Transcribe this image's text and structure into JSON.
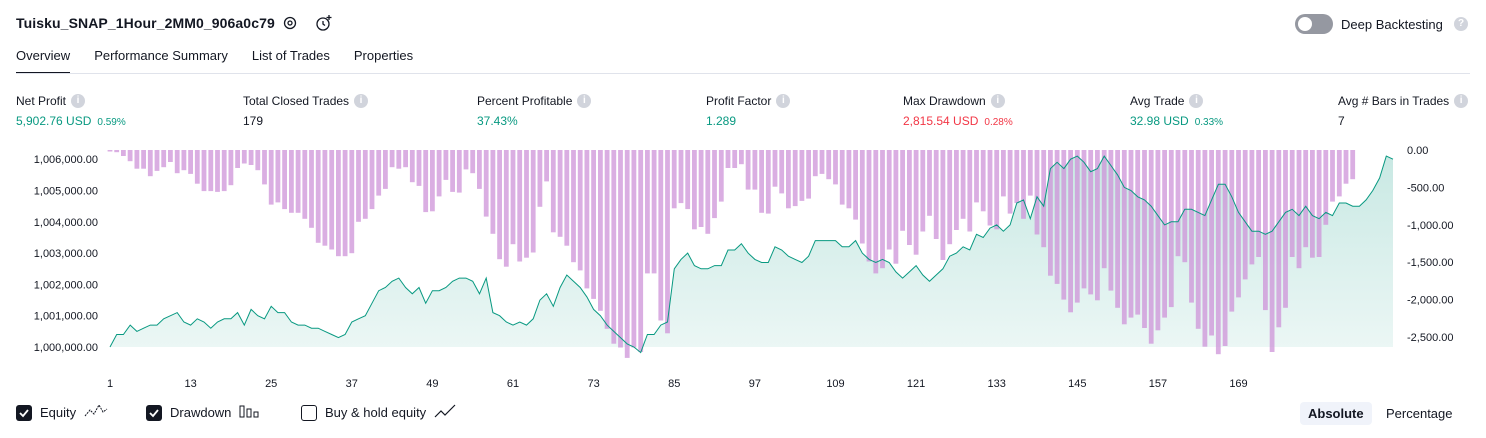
{
  "header": {
    "title": "Tuisku_SNAP_1Hour_2MM0_906a0c79",
    "deep_backtesting_label": "Deep Backtesting",
    "deep_backtesting_enabled": false
  },
  "tabs": [
    {
      "label": "Overview",
      "active": true
    },
    {
      "label": "Performance Summary",
      "active": false
    },
    {
      "label": "List of Trades",
      "active": false
    },
    {
      "label": "Properties",
      "active": false
    }
  ],
  "metrics": [
    {
      "label": "Net Profit",
      "value": "5,902.76 USD",
      "pct": "0.59%",
      "color": "#089981"
    },
    {
      "label": "Total Closed Trades",
      "value": "179",
      "pct": "",
      "color": "#131722"
    },
    {
      "label": "Percent Profitable",
      "value": "37.43%",
      "pct": "",
      "color": "#089981"
    },
    {
      "label": "Profit Factor",
      "value": "1.289",
      "pct": "",
      "color": "#089981"
    },
    {
      "label": "Max Drawdown",
      "value": "2,815.54 USD",
      "pct": "0.28%",
      "color": "#f23645"
    },
    {
      "label": "Avg Trade",
      "value": "32.98 USD",
      "pct": "0.33%",
      "color": "#089981"
    },
    {
      "label": "Avg # Bars in Trades",
      "value": "7",
      "pct": "",
      "color": "#131722"
    }
  ],
  "chart_data": {
    "type": "area",
    "x_ticks": [
      "1",
      "13",
      "25",
      "37",
      "49",
      "61",
      "73",
      "85",
      "97",
      "109",
      "121",
      "133",
      "145",
      "157",
      "169"
    ],
    "y_left_ticks": [
      "1,006,000.00",
      "1,005,000.00",
      "1,004,000.00",
      "1,003,000.00",
      "1,002,000.00",
      "1,001,000.00",
      "1,000,000.00"
    ],
    "y_right_ticks": [
      "0.00",
      "-500.00",
      "-1,000.00",
      "-1,500.00",
      "-2,000.00",
      "-2,500.00"
    ],
    "xlim": [
      1,
      179
    ],
    "ylim_equity": [
      1000000,
      1006200
    ],
    "ylim_drawdown": [
      -2800,
      0
    ],
    "series": [
      {
        "name": "Equity",
        "color": "#089981",
        "values": [
          1000000,
          1000400,
          1000400,
          1000700,
          1000500,
          1000600,
          1000700,
          1000700,
          1000900,
          1001000,
          1001100,
          1000800,
          1000700,
          1000900,
          1000800,
          1000600,
          1000800,
          1000900,
          1000900,
          1001100,
          1000700,
          1001200,
          1001000,
          1000900,
          1001300,
          1001100,
          1001100,
          1000800,
          1000700,
          1000700,
          1000600,
          1000600,
          1000500,
          1000400,
          1000300,
          1000400,
          1000800,
          1000900,
          1001000,
          1001400,
          1001800,
          1001900,
          1002100,
          1002200,
          1001900,
          1001700,
          1001900,
          1001400,
          1001800,
          1001800,
          1001900,
          1002100,
          1002200,
          1002200,
          1002100,
          1001700,
          1002200,
          1001100,
          1001000,
          1000800,
          1000700,
          1000800,
          1000700,
          1000900,
          1001500,
          1001700,
          1001300,
          1001900,
          1002300,
          1002100,
          1001900,
          1001600,
          1001200,
          1001000,
          1000700,
          1000500,
          1000300,
          1000100,
          1000000,
          999820,
          1000400,
          1000400,
          1000700,
          1000800,
          1002500,
          1002800,
          1003000,
          1002600,
          1002500,
          1002500,
          1002600,
          1002600,
          1003100,
          1003100,
          1003300,
          1003000,
          1002800,
          1002700,
          1002700,
          1003200,
          1003100,
          1002900,
          1002800,
          1002700,
          1002900,
          1003400,
          1003400,
          1003400,
          1003400,
          1003200,
          1003200,
          1003400,
          1003000,
          1002800,
          1002700,
          1002800,
          1002700,
          1002400,
          1002200,
          1002400,
          1002600,
          1002300,
          1002100,
          1002300,
          1002500,
          1002900,
          1003000,
          1003200,
          1003100,
          1003600,
          1003500,
          1003800,
          1003900,
          1003700,
          1003900,
          1004600,
          1004700,
          1004100,
          1004800,
          1004500,
          1005700,
          1005900,
          1005700,
          1006000,
          1006100,
          1005900,
          1005600,
          1005700,
          1006100,
          1005800,
          1005500,
          1005100,
          1005000,
          1004800,
          1004700,
          1004500,
          1004200,
          1003900,
          1004000,
          1004000,
          1004400,
          1004400,
          1004300,
          1004200,
          1004700,
          1005200,
          1005200,
          1004800,
          1004300,
          1004000,
          1003700,
          1003700,
          1003600,
          1003700,
          1004000,
          1004300,
          1004400,
          1004200,
          1004500,
          1004200,
          1004100,
          1004300,
          1004200,
          1004600,
          1004600,
          1004500,
          1004500,
          1004700,
          1005000,
          1005400,
          1006100,
          1006000
        ]
      },
      {
        "name": "Drawdown",
        "color": "#ce93d8",
        "values": [
          -20,
          -30,
          -80,
          -150,
          -250,
          -250,
          -350,
          -280,
          -230,
          -160,
          -310,
          -270,
          -320,
          -450,
          -550,
          -550,
          -560,
          -550,
          -470,
          -240,
          -180,
          -200,
          -270,
          -460,
          -730,
          -700,
          -790,
          -840,
          -840,
          -920,
          -1040,
          -1240,
          -1280,
          -1330,
          -1420,
          -1420,
          -1380,
          -960,
          -920,
          -790,
          -610,
          -520,
          -230,
          -250,
          -230,
          -430,
          -480,
          -830,
          -820,
          -620,
          -400,
          -560,
          -570,
          -260,
          -310,
          -520,
          -890,
          -1120,
          -1460,
          -1560,
          -1260,
          -1490,
          -1440,
          -1370,
          -760,
          -420,
          -1100,
          -1160,
          -1280,
          -1500,
          -1610,
          -1850,
          -1990,
          -2150,
          -2390,
          -2590,
          -2640,
          -2780,
          -2640,
          -2700,
          -1650,
          -1650,
          -2280,
          -2450,
          -780,
          -710,
          -790,
          -1060,
          -1030,
          -1120,
          -910,
          -690,
          -240,
          -240,
          -190,
          -530,
          -530,
          -840,
          -850,
          -490,
          -580,
          -780,
          -750,
          -680,
          -650,
          -350,
          -320,
          -390,
          -460,
          -730,
          -780,
          -930,
          -1250,
          -1490,
          -1650,
          -1580,
          -1330,
          -1520,
          -1080,
          -1270,
          -1400,
          -1090,
          -880,
          -1190,
          -1470,
          -1260,
          -1070,
          -920,
          -1090,
          -700,
          -820,
          -1010,
          -1060,
          -620,
          -850,
          -710,
          -920,
          -610,
          -1130,
          -1300,
          -1680,
          -1790,
          -2000,
          -2170,
          -2040,
          -1850,
          -1930,
          -2010,
          -1580,
          -1880,
          -2110,
          -2330,
          -2240,
          -2200,
          -2380,
          -2590,
          -2410,
          -2240,
          -2100,
          -1420,
          -1500,
          -2040,
          -2390,
          -2630,
          -2480,
          -2730,
          -2620,
          -2160,
          -1970,
          -1730,
          -1530,
          -1430,
          -2140,
          -2700,
          -2370,
          -2110,
          -1430,
          -1580,
          -1300,
          -1440,
          -1430,
          -1000,
          -690,
          -620,
          -450,
          -390
        ]
      }
    ]
  },
  "legend": {
    "equity_label": "Equity",
    "equity_checked": true,
    "drawdown_label": "Drawdown",
    "drawdown_checked": true,
    "buyhold_label": "Buy & hold equity",
    "buyhold_checked": false
  },
  "view_mode": {
    "absolute_label": "Absolute",
    "percentage_label": "Percentage",
    "selected": "Absolute"
  }
}
